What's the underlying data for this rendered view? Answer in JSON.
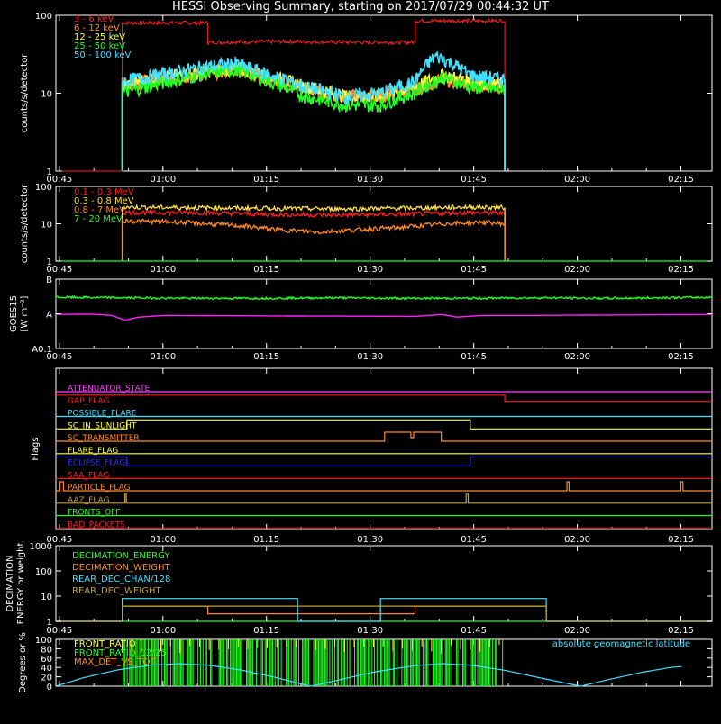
{
  "title": "HESSI Observing Summary, starting on 2017/07/29 00:44:32 UT",
  "time_ticks": [
    "00:45",
    "01:00",
    "01:15",
    "01:30",
    "01:45",
    "02:00",
    "02:15"
  ],
  "colors": {
    "bg": "#000000",
    "axis": "#ffffff"
  },
  "chart_data": [
    {
      "id": "lowE",
      "type": "line",
      "ylabel": "counts/s/detector",
      "yscale": "log",
      "ylim": [
        1,
        100
      ],
      "yticks": [
        "1",
        "10",
        "100"
      ],
      "series": [
        {
          "name": "3 - 6 keV",
          "color": "#ff2020",
          "points": [
            [
              0.9,
              1
            ],
            [
              9.6,
              1
            ],
            [
              9.6,
              80
            ],
            [
              22,
              80
            ],
            [
              22,
              45
            ],
            [
              33,
              46
            ],
            [
              45,
              45
            ],
            [
              52,
              45
            ],
            [
              52,
              85
            ],
            [
              65,
              85
            ],
            [
              65,
              1
            ]
          ]
        },
        {
          "name": "6 - 12 keV",
          "color": "#ff8a20",
          "points": [
            [
              9.6,
              1
            ],
            [
              9.6,
              13
            ],
            [
              13,
              14
            ],
            [
              18,
              16
            ],
            [
              22,
              18
            ],
            [
              26,
              20
            ],
            [
              30,
              16
            ],
            [
              36,
              11
            ],
            [
              42,
              9
            ],
            [
              47,
              9
            ],
            [
              52,
              11
            ],
            [
              56,
              15
            ],
            [
              60,
              13
            ],
            [
              65,
              12
            ],
            [
              65,
              1
            ]
          ]
        },
        {
          "name": "12 - 25 keV",
          "color": "#ffff40",
          "points": [
            [
              9.6,
              1
            ],
            [
              9.6,
              12
            ],
            [
              13,
              15
            ],
            [
              18,
              17
            ],
            [
              22,
              19
            ],
            [
              26,
              21
            ],
            [
              30,
              17
            ],
            [
              36,
              12
            ],
            [
              42,
              9
            ],
            [
              47,
              9
            ],
            [
              52,
              12
            ],
            [
              56,
              17
            ],
            [
              60,
              14
            ],
            [
              65,
              13
            ],
            [
              65,
              1
            ]
          ]
        },
        {
          "name": "25 - 50 keV",
          "color": "#20ff20",
          "points": [
            [
              9.6,
              1
            ],
            [
              9.6,
              10
            ],
            [
              13,
              12
            ],
            [
              18,
              15
            ],
            [
              22,
              18
            ],
            [
              26,
              20
            ],
            [
              30,
              15
            ],
            [
              36,
              9
            ],
            [
              42,
              7
            ],
            [
              47,
              7
            ],
            [
              52,
              10
            ],
            [
              56,
              16
            ],
            [
              60,
              12
            ],
            [
              65,
              11
            ],
            [
              65,
              1
            ]
          ]
        },
        {
          "name": "50 - 100 keV",
          "color": "#40e0ff",
          "points": [
            [
              9.6,
              1
            ],
            [
              9.6,
              14
            ],
            [
              13,
              16
            ],
            [
              18,
              19
            ],
            [
              22,
              22
            ],
            [
              26,
              24
            ],
            [
              30,
              18
            ],
            [
              36,
              12
            ],
            [
              42,
              9
            ],
            [
              47,
              10
            ],
            [
              52,
              14
            ],
            [
              55,
              30
            ],
            [
              57,
              25
            ],
            [
              60,
              17
            ],
            [
              65,
              15
            ],
            [
              65,
              1
            ]
          ]
        }
      ]
    },
    {
      "id": "highE",
      "type": "line",
      "ylabel": "counts/s/detector",
      "yscale": "log",
      "ylim": [
        1,
        100
      ],
      "yticks": [
        "1",
        "10",
        "100"
      ],
      "series": [
        {
          "name": "0.1 - 0.3 MeV",
          "color": "#ff2020",
          "points": [
            [
              9.6,
              1
            ],
            [
              9.6,
              20
            ],
            [
              20,
              20
            ],
            [
              30,
              18
            ],
            [
              40,
              17
            ],
            [
              50,
              18
            ],
            [
              60,
              20
            ],
            [
              65,
              19
            ],
            [
              65,
              1
            ]
          ]
        },
        {
          "name": "0.3 - 0.8 MeV",
          "color": "#ffe040",
          "points": [
            [
              9.6,
              1
            ],
            [
              9.6,
              28
            ],
            [
              20,
              27
            ],
            [
              30,
              26
            ],
            [
              40,
              25
            ],
            [
              50,
              26
            ],
            [
              60,
              28
            ],
            [
              65,
              27
            ],
            [
              65,
              1
            ]
          ]
        },
        {
          "name": "0.8 - 7 MeV",
          "color": "#ff8a20",
          "points": [
            [
              9.6,
              1
            ],
            [
              9.6,
              12
            ],
            [
              18,
              11
            ],
            [
              26,
              9
            ],
            [
              32,
              7
            ],
            [
              38,
              6
            ],
            [
              44,
              7
            ],
            [
              50,
              8
            ],
            [
              56,
              10
            ],
            [
              62,
              11
            ],
            [
              65,
              10
            ],
            [
              65,
              1
            ]
          ]
        },
        {
          "name": "7 - 20 MeV",
          "color": "#20ff20",
          "points": [
            [
              0,
              1
            ],
            [
              95,
              1
            ]
          ]
        }
      ]
    },
    {
      "id": "goes",
      "type": "line",
      "ylabel": "GOES15",
      "ylabel_units": "[W m⁻²]",
      "yscale": "log",
      "ylim": [
        0.1,
        10
      ],
      "yticks": [
        "A0.1",
        "A",
        "B"
      ],
      "series": [
        {
          "name": "",
          "color": "#20ff20",
          "points": [
            [
              0,
              3.0
            ],
            [
              10,
              2.9
            ],
            [
              20,
              2.8
            ],
            [
              30,
              2.8
            ],
            [
              40,
              2.9
            ],
            [
              50,
              2.8
            ],
            [
              60,
              2.8
            ],
            [
              70,
              2.9
            ],
            [
              80,
              2.8
            ],
            [
              95,
              3.0
            ]
          ]
        },
        {
          "name": "",
          "color": "#ff20ff",
          "points": [
            [
              0,
              0.95
            ],
            [
              5,
              0.98
            ],
            [
              8,
              0.9
            ],
            [
              10,
              0.65
            ],
            [
              12,
              0.8
            ],
            [
              16,
              0.9
            ],
            [
              25,
              0.88
            ],
            [
              35,
              0.86
            ],
            [
              45,
              0.85
            ],
            [
              52,
              0.84
            ],
            [
              56,
              0.95
            ],
            [
              58,
              0.8
            ],
            [
              62,
              0.9
            ],
            [
              70,
              0.9
            ],
            [
              80,
              0.92
            ],
            [
              95,
              0.95
            ]
          ]
        }
      ]
    },
    {
      "id": "flags",
      "type": "line",
      "ylabel": "Flags",
      "series": [
        {
          "name": "ATTENUATOR_STATE",
          "color": "#ff40ff",
          "steps": [
            [
              0,
              0
            ]
          ]
        },
        {
          "name": "GAP_FLAG",
          "color": "#ff2020",
          "steps": [
            [
              0,
              1
            ],
            [
              65,
              0.3
            ]
          ]
        },
        {
          "name": "POSSIBLE_FLARE",
          "color": "#40e0ff",
          "steps": [
            [
              0,
              0
            ]
          ]
        },
        {
          "name": "SC_IN_SUNLIGHT",
          "color": "#ffff40",
          "steps": [
            [
              0,
              0
            ],
            [
              10.3,
              1
            ],
            [
              60,
              0
            ]
          ]
        },
        {
          "name": "SC_TRANSMITTER",
          "color": "#ff8a20",
          "steps": [
            [
              0,
              0
            ],
            [
              47.6,
              1
            ],
            [
              51.4,
              0.4
            ],
            [
              51.8,
              1
            ],
            [
              55.8,
              0
            ]
          ]
        },
        {
          "name": "FLARE_FLAG",
          "color": "#ffff40",
          "steps": [
            [
              0,
              0
            ]
          ]
        },
        {
          "name": "ECLIPSE_FLAG",
          "color": "#3030ff",
          "steps": [
            [
              0,
              1
            ],
            [
              10.3,
              0
            ],
            [
              60,
              1
            ]
          ]
        },
        {
          "name": "SAA_FLAG",
          "color": "#ff2020",
          "steps": [
            [
              0,
              0
            ]
          ]
        },
        {
          "name": "PARTICLE_FLAG",
          "color": "#ff8a20",
          "steps": [
            [
              0,
              0
            ],
            [
              0.6,
              1
            ],
            [
              1.1,
              0
            ],
            [
              74,
              1
            ],
            [
              74.3,
              0
            ],
            [
              90.5,
              1
            ],
            [
              90.8,
              0
            ]
          ]
        },
        {
          "name": "AAZ_FLAG",
          "color": "#c0a040",
          "steps": [
            [
              0,
              0
            ],
            [
              10,
              1
            ],
            [
              10.2,
              0
            ],
            [
              59.4,
              1
            ],
            [
              59.7,
              0
            ]
          ]
        },
        {
          "name": "FRONTS_OFF",
          "color": "#20ff20",
          "steps": [
            [
              0,
              0
            ]
          ]
        },
        {
          "name": "BAD_PACKETS",
          "color": "#ff2020",
          "steps": [
            [
              0,
              0
            ]
          ]
        }
      ]
    },
    {
      "id": "decim",
      "type": "line",
      "ylabel": "DECIMATION",
      "ylabel2": "ENERGY or weight",
      "yscale": "log",
      "ylim": [
        1,
        1000
      ],
      "yticks": [
        "1",
        "10",
        "100",
        "1000"
      ],
      "series": [
        {
          "name": "DECIMATION_ENERGY",
          "color": "#20ff20",
          "points": [
            [
              0,
              1
            ],
            [
              95,
              1
            ]
          ]
        },
        {
          "name": "DECIMATION_WEIGHT",
          "color": "#ff8a20",
          "points": [
            [
              0,
              1
            ],
            [
              9.6,
              1
            ],
            [
              9.6,
              4
            ],
            [
              22,
              4
            ],
            [
              22,
              2
            ],
            [
              52,
              2
            ],
            [
              52,
              4
            ],
            [
              71,
              4
            ],
            [
              71,
              1
            ],
            [
              95,
              1
            ]
          ]
        },
        {
          "name": "REAR_DEC_CHAN/128",
          "color": "#40e0ff",
          "points": [
            [
              0,
              1
            ],
            [
              9.6,
              1
            ],
            [
              9.6,
              8
            ],
            [
              35,
              8
            ],
            [
              35,
              1
            ],
            [
              47,
              1
            ],
            [
              47,
              8
            ],
            [
              71,
              8
            ],
            [
              71,
              1
            ],
            [
              95,
              1
            ]
          ]
        },
        {
          "name": "REAR_DEC_WEIGHT",
          "color": "#c0a040",
          "points": [
            [
              0,
              1
            ],
            [
              9.6,
              1
            ],
            [
              9.6,
              4
            ],
            [
              22,
              4
            ],
            [
              22,
              4
            ],
            [
              52,
              4
            ],
            [
              71,
              4
            ],
            [
              71,
              1
            ],
            [
              95,
              1
            ]
          ]
        }
      ]
    },
    {
      "id": "ratio",
      "type": "line",
      "ylabel": "Degrees or %",
      "ylim": [
        0,
        100
      ],
      "yticks": [
        "0",
        "20",
        "40",
        "60",
        "80",
        "100"
      ],
      "right_label": "absolute geomagnetic latitude",
      "series": [
        {
          "name": "FRONT_RATIO",
          "color": "#ffff40",
          "points": []
        },
        {
          "name": "FRONT_RATIO_12/25",
          "color": "#20ff20",
          "points": []
        },
        {
          "name": "MAX_DET_VS_TOT",
          "color": "#ff8a20",
          "points": []
        },
        {
          "name": "absolute geomagnetic latitude",
          "color": "#40e0ff",
          "points": [
            [
              0,
              0
            ],
            [
              4,
              18
            ],
            [
              9,
              35
            ],
            [
              14,
              45
            ],
            [
              18,
              48
            ],
            [
              22,
              45
            ],
            [
              27,
              34
            ],
            [
              32,
              18
            ],
            [
              36,
              3
            ],
            [
              37,
              0
            ],
            [
              40,
              10
            ],
            [
              46,
              30
            ],
            [
              52,
              44
            ],
            [
              56,
              48
            ],
            [
              60,
              45
            ],
            [
              65,
              34
            ],
            [
              70,
              18
            ],
            [
              75,
              3
            ],
            [
              76,
              0
            ],
            [
              80,
              14
            ],
            [
              85,
              30
            ],
            [
              89,
              40
            ],
            [
              90.6,
              42
            ]
          ]
        }
      ],
      "bar_span": [
        9.6,
        65
      ]
    }
  ]
}
